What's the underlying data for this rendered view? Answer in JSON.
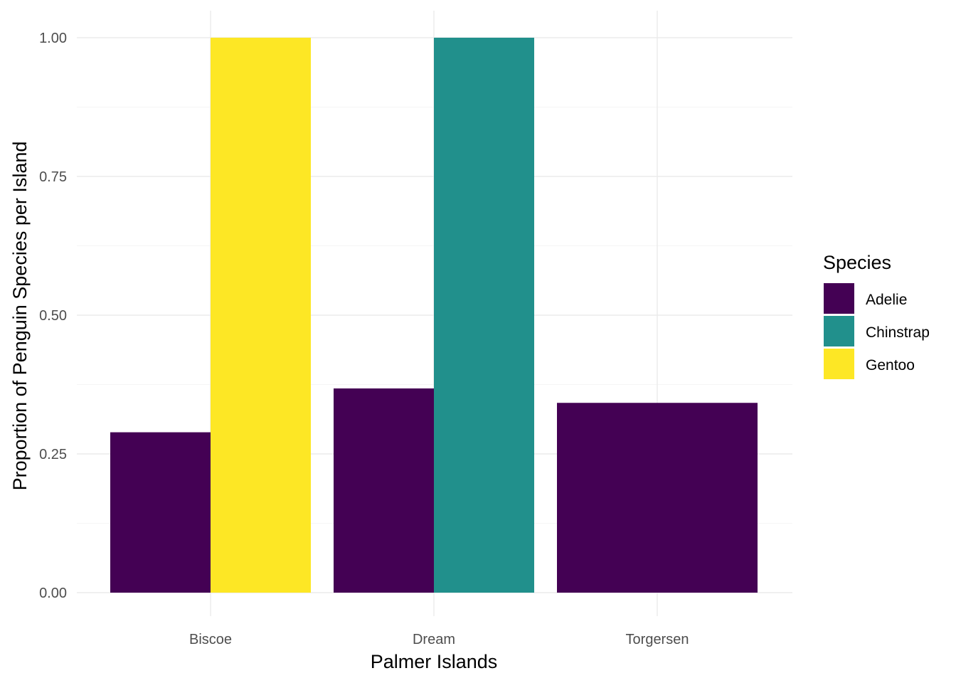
{
  "chart_data": {
    "type": "bar",
    "position": "dodge",
    "categories": [
      "Biscoe",
      "Dream",
      "Torgersen"
    ],
    "series": [
      {
        "name": "Adelie",
        "color": "#440154",
        "values": [
          0.289,
          0.368,
          0.342
        ]
      },
      {
        "name": "Chinstrap",
        "color": "#21908C",
        "values": [
          null,
          1.0,
          null
        ]
      },
      {
        "name": "Gentoo",
        "color": "#FDE725",
        "values": [
          1.0,
          null,
          null
        ]
      }
    ],
    "xlabel": "Palmer Islands",
    "ylabel": "Proportion of Penguin Species per Island",
    "ylim": [
      0,
      1
    ],
    "y_ticks": [
      "0.00",
      "0.25",
      "0.50",
      "0.75",
      "1.00"
    ],
    "legend_title": "Species",
    "legend_position": "right",
    "grid": true
  }
}
